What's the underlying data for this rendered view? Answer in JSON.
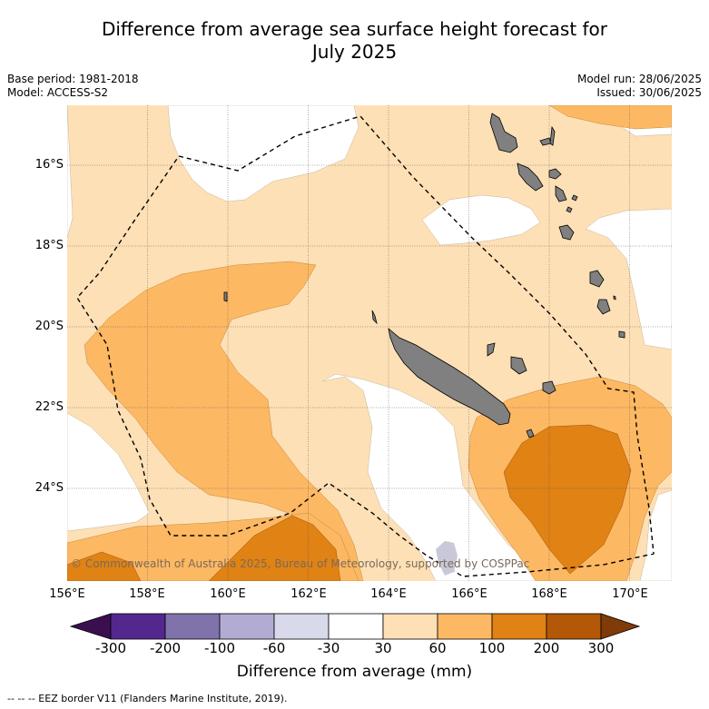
{
  "title_line1": "Difference from average sea surface height forecast for",
  "title_line2": "July 2025",
  "base_period": "Base period: 1981-2018",
  "model": "Model: ACCESS-S2",
  "model_run": "Model run: 28/06/2025",
  "issued": "Issued: 30/06/2025",
  "copyright": "© Commonwealth of Australia 2025, Bureau of Meteorology, supported by COSPPac",
  "lat_labels": [
    "16°S",
    "18°S",
    "20°S",
    "22°S",
    "24°S"
  ],
  "lon_labels": [
    "156°E",
    "158°E",
    "160°E",
    "162°E",
    "164°E",
    "166°E",
    "168°E",
    "170°E"
  ],
  "colorbar": {
    "title": "Difference from average (mm)",
    "ticks": [
      "-300",
      "-200",
      "-100",
      "-60",
      "-30",
      "30",
      "60",
      "100",
      "200",
      "300"
    ],
    "colors": [
      "#3b0f4f",
      "#54278f",
      "#8073ac",
      "#b2abd2",
      "#d8daeb",
      "#ffffff",
      "#fee0b6",
      "#fdb863",
      "#e08214",
      "#b35806",
      "#7f3b08"
    ]
  },
  "footnote": "-- -- -- EEZ border V11 (Flanders Marine Institute, 2019).",
  "legend_colors": {
    "light": "#fee0b6",
    "medium": "#fdb863",
    "dark": "#e08214",
    "land": "#808080"
  }
}
